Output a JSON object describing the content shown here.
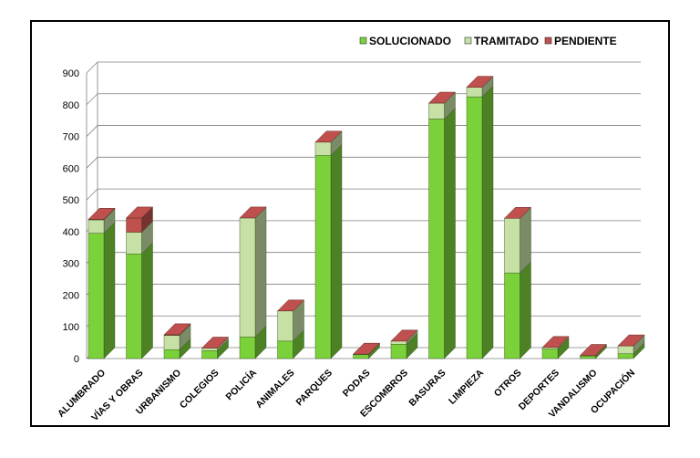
{
  "chart_data": {
    "type": "bar",
    "stacked": true,
    "three_d": true,
    "categories": [
      "ALUMBRADO",
      "VÍAS Y OBRAS",
      "URBANISMO",
      "COLEGIOS",
      "POLICÍA",
      "ANIMALES",
      "PARQUES",
      "PODAS",
      "ESCOMBROS",
      "BASURAS",
      "LIMPIEZA",
      "OTROS",
      "DEPORTES",
      "VANDALISMO",
      "OCUPACIÓN"
    ],
    "series": [
      {
        "name": "SOLUCIONADO",
        "color": "#7bd13a",
        "values": [
          395,
          330,
          28,
          25,
          68,
          55,
          640,
          12,
          45,
          755,
          825,
          270,
          30,
          8,
          15
        ]
      },
      {
        "name": "TRAMITADO",
        "color": "#c6e0a6",
        "values": [
          42,
          68,
          45,
          8,
          375,
          95,
          42,
          2,
          10,
          50,
          30,
          172,
          5,
          2,
          25
        ]
      },
      {
        "name": "PENDIENTE",
        "color": "#c0504d",
        "values": [
          2,
          45,
          2,
          0,
          0,
          0,
          0,
          0,
          0,
          0,
          0,
          0,
          0,
          0,
          0
        ]
      }
    ],
    "y_ticks": [
      "0",
      "100",
      "200",
      "300",
      "400",
      "500",
      "600",
      "700",
      "800",
      "900"
    ],
    "ylim": [
      0,
      900
    ],
    "grid": true,
    "legend_position": "top-right"
  }
}
